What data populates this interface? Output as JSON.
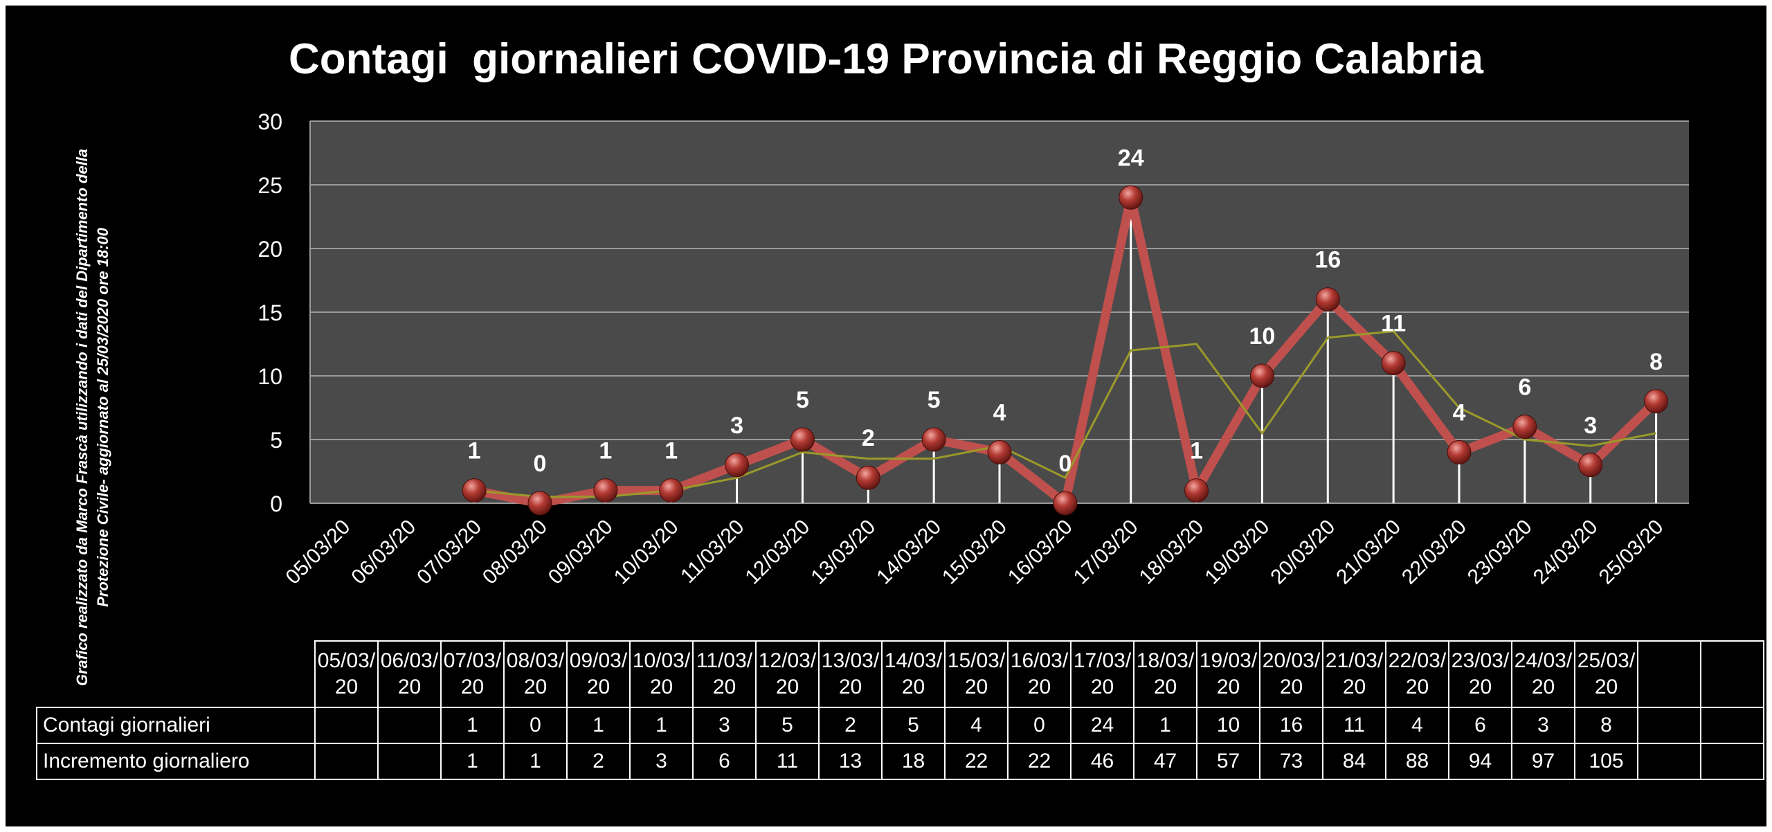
{
  "chart_data": {
    "type": "line",
    "title": "Contagi  giornalieri COVID-19 Provincia di Reggio Calabria",
    "side_note": "Grafico  realizzato da Marco Frascà  utilizzando i dati del Dipartimento  della Protezione Civile- aggiornato al 25/03/2020 ore 18:00",
    "categories": [
      "05/03/20",
      "06/03/20",
      "07/03/20",
      "08/03/20",
      "09/03/20",
      "10/03/20",
      "11/03/20",
      "12/03/20",
      "13/03/20",
      "14/03/20",
      "15/03/20",
      "16/03/20",
      "17/03/20",
      "18/03/20",
      "19/03/20",
      "20/03/20",
      "21/03/20",
      "22/03/20",
      "23/03/20",
      "24/03/20",
      "25/03/20"
    ],
    "y_ticks": [
      "0",
      "5",
      "10",
      "15",
      "20",
      "25",
      "30"
    ],
    "ylim": [
      0,
      30
    ],
    "grid": true,
    "series": [
      {
        "name": "Contagi giornalieri",
        "values": [
          null,
          null,
          1,
          0,
          1,
          1,
          3,
          5,
          2,
          5,
          4,
          0,
          24,
          1,
          10,
          16,
          11,
          4,
          6,
          3,
          8
        ]
      }
    ],
    "trendline": [
      null,
      null,
      1,
      0.5,
      0.5,
      1,
      2,
      4,
      3.5,
      3.5,
      4.5,
      2,
      12,
      12.5,
      5.5,
      13,
      13.5,
      7.5,
      5,
      4.5,
      5.5
    ],
    "data_labels": [
      "",
      "",
      "1",
      "0",
      "1",
      "1",
      "3",
      "5",
      "2",
      "5",
      "4",
      "0",
      "24",
      "1",
      "10",
      "16",
      "11",
      "4",
      "6",
      "3",
      "8"
    ],
    "colors": {
      "series": "#c0504d",
      "marker": "#a52a2a",
      "trend": "#9a9a2a",
      "plot_bg": "#4a4a4a",
      "background": "#000000"
    }
  },
  "table": {
    "headers": [
      "05/03/20",
      "06/03/20",
      "07/03/20",
      "08/03/20",
      "09/03/20",
      "10/03/20",
      "11/03/20",
      "12/03/20",
      "13/03/20",
      "14/03/20",
      "15/03/20",
      "16/03/20",
      "17/03/20",
      "18/03/20",
      "19/03/20",
      "20/03/20",
      "21/03/20",
      "22/03/20",
      "23/03/20",
      "24/03/20",
      "25/03/20",
      "",
      ""
    ],
    "rows": [
      {
        "label": "Contagi giornalieri",
        "cells": [
          "",
          "",
          "1",
          "0",
          "1",
          "1",
          "3",
          "5",
          "2",
          "5",
          "4",
          "0",
          "24",
          "1",
          "10",
          "16",
          "11",
          "4",
          "6",
          "3",
          "8",
          "",
          ""
        ]
      },
      {
        "label": "Incremento giornaliero",
        "cells": [
          "",
          "",
          "1",
          "1",
          "2",
          "3",
          "6",
          "11",
          "13",
          "18",
          "22",
          "22",
          "46",
          "47",
          "57",
          "73",
          "84",
          "88",
          "94",
          "97",
          "105",
          "",
          ""
        ]
      }
    ]
  }
}
